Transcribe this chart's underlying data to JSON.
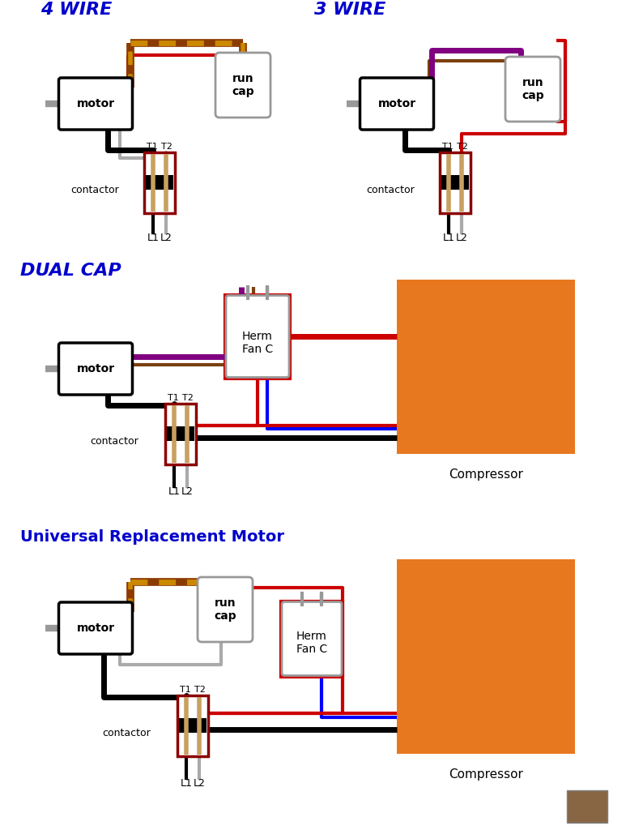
{
  "bg_color": "#ffffff",
  "title_4wire": "4 WIRE",
  "title_3wire": "3 WIRE",
  "title_dualcap": "DUAL CAP",
  "title_universal": "Universal Replacement Motor",
  "label_motor": "motor",
  "label_runcap": "run\ncap",
  "label_contactor": "contactor",
  "label_T1": "T1",
  "label_T2": "T2",
  "label_L1": "L1",
  "label_L2": "L2",
  "label_compressor": "Compressor",
  "label_hermfanc": "Herm\nFan C",
  "title_color": "#0000cc",
  "wire_black": "#000000",
  "wire_red": "#cc0000",
  "wire_brown": "#7a4010",
  "wire_gray": "#aaaaaa",
  "wire_purple": "#800080",
  "wire_blue": "#0000ff",
  "compressor_color": "#e87820",
  "contactor_border": "#8B0000",
  "motor_border": "#000000",
  "stripe_outer": "#8B3a00",
  "stripe_inner": "#cc8800"
}
